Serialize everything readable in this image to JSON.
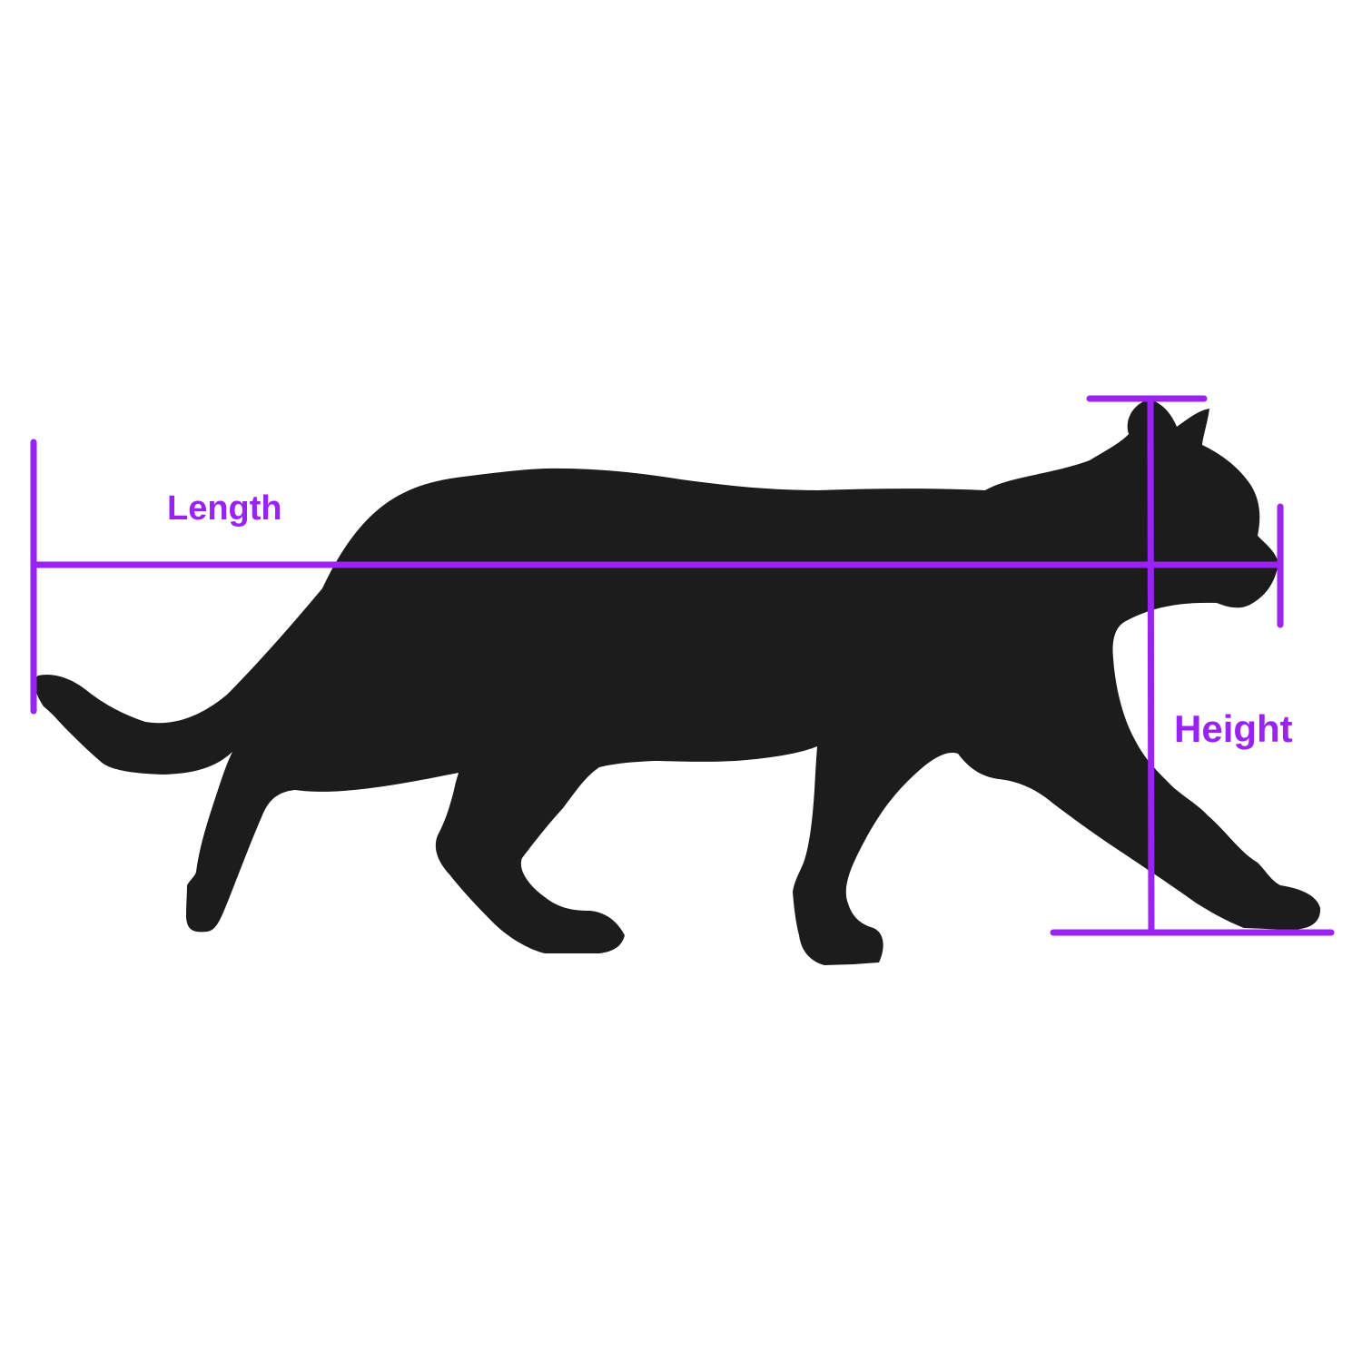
{
  "diagram": {
    "labels": {
      "length": "Length",
      "height": "Height"
    },
    "colors": {
      "background": "#ffffff",
      "silhouette": "#1c1c1c",
      "measure_lines": "#9a22f2",
      "label_text": "#9a22f2"
    },
    "subject": "cat-silhouette"
  }
}
